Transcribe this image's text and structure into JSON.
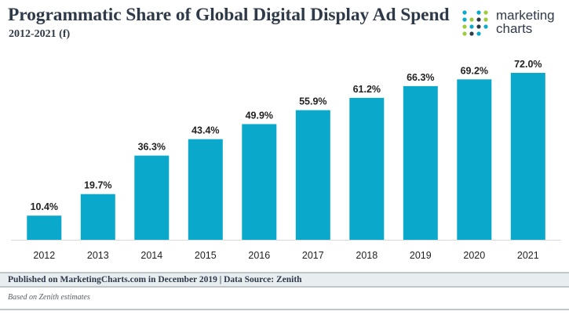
{
  "header": {
    "title": "Programmatic Share of Global Digital Display Ad Spend",
    "subtitle": "2012-2021 (f)"
  },
  "logo": {
    "line1": "marketing",
    "line2": "charts",
    "dot_colors": [
      "#0aa9cc",
      "#9ccc3c",
      "#2f3a49"
    ]
  },
  "chart_data": {
    "type": "bar",
    "categories": [
      "2012",
      "2013",
      "2014",
      "2015",
      "2016",
      "2017",
      "2018",
      "2019",
      "2020",
      "2021"
    ],
    "values": [
      10.4,
      19.7,
      36.3,
      43.4,
      49.9,
      55.9,
      61.2,
      66.3,
      69.2,
      72.0
    ],
    "value_labels": [
      "10.4%",
      "19.7%",
      "36.3%",
      "43.4%",
      "49.9%",
      "55.9%",
      "61.2%",
      "66.3%",
      "69.2%",
      "72.0%"
    ],
    "ylim": [
      0,
      72
    ],
    "bar_color": "#0aa9cc",
    "grid": false
  },
  "footer": {
    "source": "Published on MarketingCharts.com in December 2019 | Data Source: Zenith",
    "note": "Based on Zenith estimates"
  }
}
